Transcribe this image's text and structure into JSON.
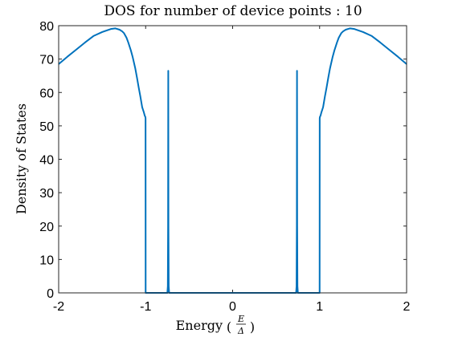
{
  "chart_data": {
    "type": "line",
    "title": "DOS for number of device points : 10",
    "xlabel": "Energy",
    "xlabel_fraction": {
      "numerator": "E",
      "denominator": "Δ"
    },
    "ylabel": "Density of States",
    "xlim": [
      -2,
      2
    ],
    "ylim": [
      0,
      80
    ],
    "xticks": [
      -2,
      -1,
      0,
      1,
      2
    ],
    "yticks": [
      0,
      10,
      20,
      30,
      40,
      50,
      60,
      70,
      80
    ],
    "grid": false,
    "line_color": "#0072BD",
    "series": [
      {
        "x": [
          -2.0,
          -1.9,
          -1.8,
          -1.7,
          -1.6,
          -1.5,
          -1.4,
          -1.35,
          -1.3,
          -1.27,
          -1.25,
          -1.22,
          -1.2,
          -1.17,
          -1.15,
          -1.12,
          -1.1,
          -1.08,
          -1.06,
          -1.04,
          -1.02,
          -1.01,
          -1.005,
          -1.002,
          -1.001,
          -1.0,
          -0.75,
          -0.745,
          -0.742,
          -0.74,
          -0.738,
          -0.735,
          -0.73,
          0.73,
          0.735,
          0.738,
          0.74,
          0.742,
          0.745,
          0.75,
          1.0,
          1.001,
          1.002,
          1.005,
          1.01,
          1.02,
          1.04,
          1.06,
          1.08,
          1.1,
          1.12,
          1.15,
          1.17,
          1.2,
          1.22,
          1.25,
          1.27,
          1.3,
          1.35,
          1.4,
          1.5,
          1.6,
          1.7,
          1.8,
          1.9,
          2.0
        ],
        "y": [
          68.5,
          70.7,
          72.8,
          74.9,
          76.9,
          78.1,
          79.0,
          79.2,
          78.8,
          78.3,
          77.8,
          76.4,
          75.0,
          72.6,
          70.7,
          67.3,
          64.5,
          61.5,
          58.7,
          55.6,
          54.0,
          53.0,
          52.8,
          52.5,
          52.2,
          0.0,
          0.0,
          2.0,
          20.0,
          66.5,
          20.0,
          2.0,
          0.0,
          0.0,
          2.0,
          20.0,
          66.5,
          20.0,
          2.0,
          0.0,
          0.0,
          52.2,
          52.5,
          52.8,
          53.0,
          54.0,
          55.6,
          58.7,
          61.5,
          64.5,
          67.3,
          70.7,
          72.6,
          75.0,
          76.4,
          77.8,
          78.3,
          78.8,
          79.2,
          79.0,
          78.1,
          76.9,
          74.9,
          72.8,
          70.7,
          68.5
        ]
      }
    ]
  }
}
